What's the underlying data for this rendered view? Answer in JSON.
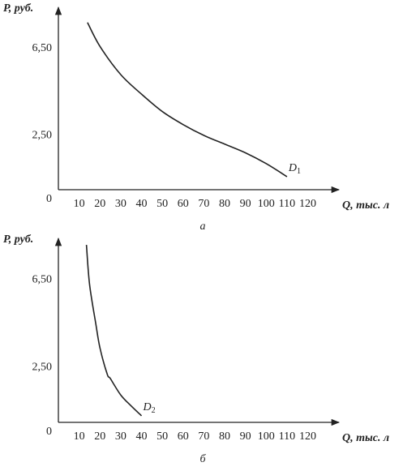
{
  "chart_data": [
    {
      "type": "line",
      "caption": "а",
      "y_label": "P, руб.",
      "x_label": "Q, тыс. л",
      "x": [
        14,
        20,
        30,
        40,
        50,
        60,
        70,
        80,
        90,
        100,
        110
      ],
      "series": [
        {
          "name": "D1",
          "color": "#222222",
          "values": [
            7.7,
            6.6,
            5.3,
            4.4,
            3.6,
            3.0,
            2.5,
            2.1,
            1.7,
            1.2,
            0.6
          ]
        }
      ],
      "xlim": [
        0,
        135
      ],
      "xticks": [
        10,
        20,
        30,
        40,
        50,
        60,
        70,
        80,
        90,
        100,
        110,
        120
      ],
      "ylim": [
        0,
        8.4
      ],
      "yticks": [
        0,
        {
          "value": 2.5,
          "label": "2,50"
        },
        {
          "value": 6.5,
          "label": "6,50"
        }
      ]
    },
    {
      "type": "line",
      "caption": "б",
      "y_label": "P, руб.",
      "x_label": "Q, тыс. л",
      "x": [
        13.5,
        15,
        18,
        20,
        23.5,
        25,
        30,
        35,
        40
      ],
      "series": [
        {
          "name": "D2",
          "color": "#222222",
          "values": [
            8.1,
            6.3,
            4.5,
            3.4,
            2.2,
            2.0,
            1.25,
            0.75,
            0.3
          ]
        }
      ],
      "xlim": [
        0,
        135
      ],
      "xticks": [
        10,
        20,
        30,
        40,
        50,
        60,
        70,
        80,
        90,
        100,
        110,
        120
      ],
      "ylim": [
        0,
        8.4
      ],
      "yticks": [
        0,
        {
          "value": 2.5,
          "label": "2,50"
        },
        {
          "value": 6.5,
          "label": "6,50"
        }
      ]
    }
  ]
}
